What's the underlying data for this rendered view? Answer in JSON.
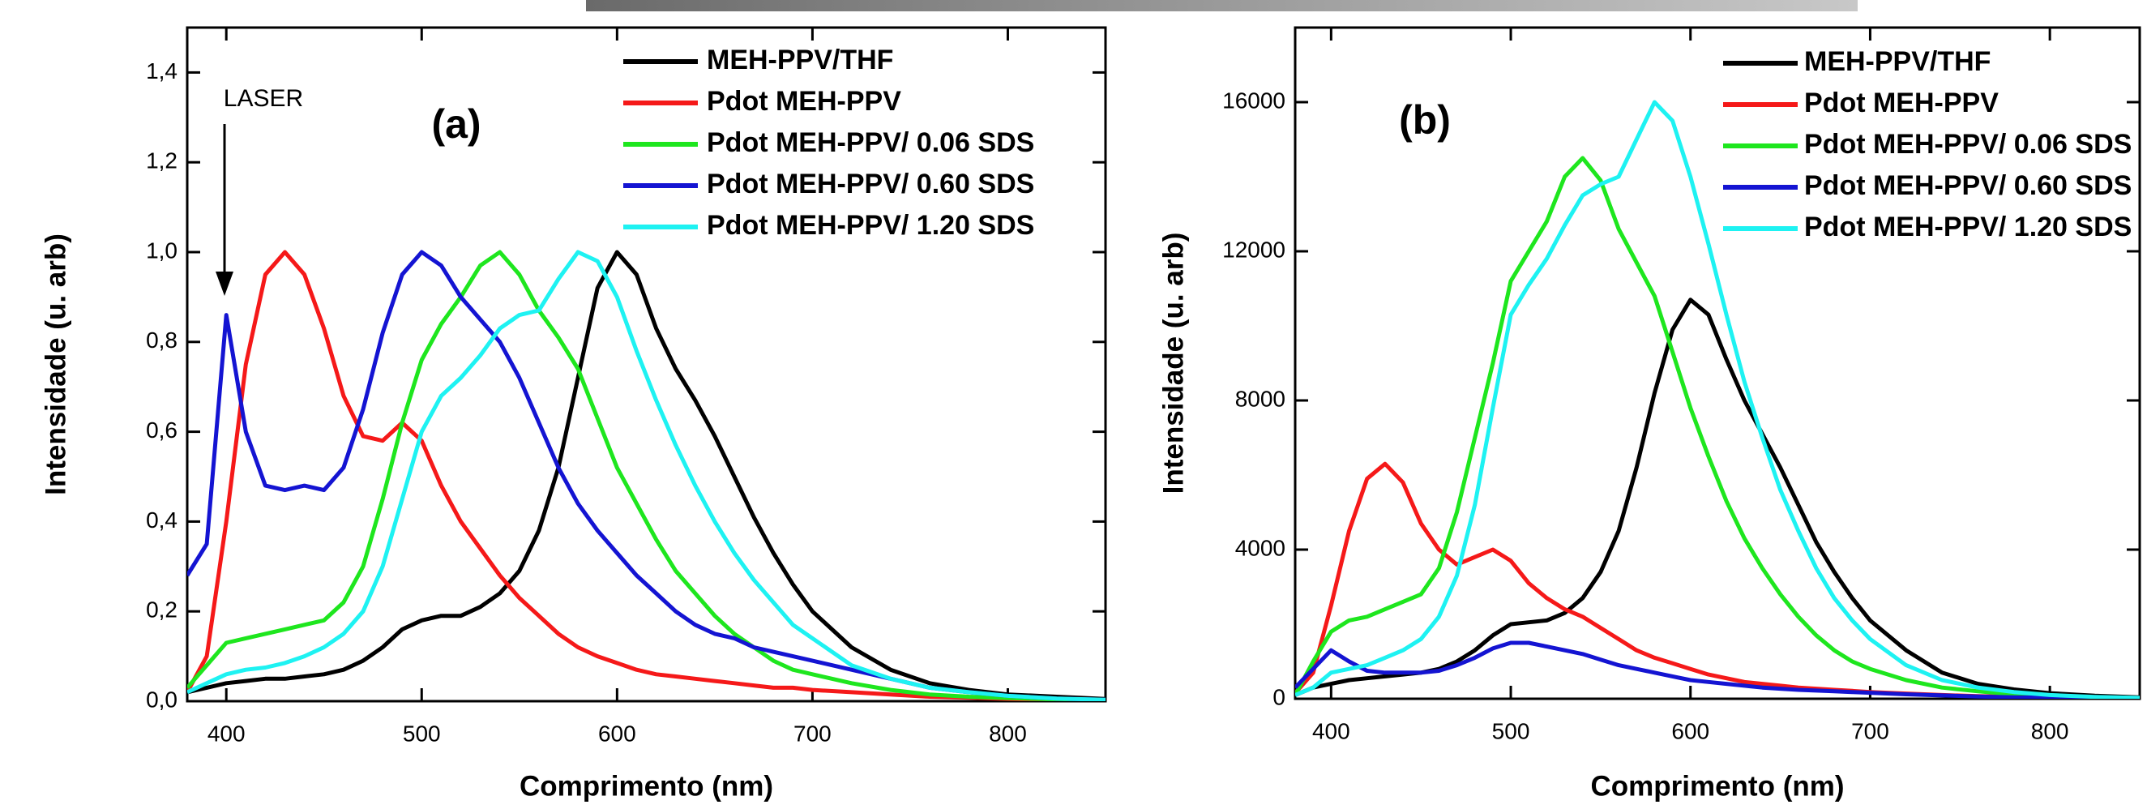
{
  "chart_data": [
    {
      "type": "line",
      "label": "(a)",
      "annotation": "LASER",
      "xlabel": "Comprimento (nm)",
      "ylabel": "Intensidade (u. arb)",
      "xlim": [
        380,
        850
      ],
      "xticks": [
        400,
        500,
        600,
        700,
        800
      ],
      "ylim": [
        0,
        1.5
      ],
      "yticks": [
        {
          "value": 0,
          "label": "0,0"
        },
        {
          "value": 0.2,
          "label": "0,2"
        },
        {
          "value": 0.4,
          "label": "0,4"
        },
        {
          "value": 0.6,
          "label": "0,6"
        },
        {
          "value": 0.8,
          "label": "0,8"
        },
        {
          "value": 1.0,
          "label": "1,0"
        },
        {
          "value": 1.2,
          "label": "1,2"
        },
        {
          "value": 1.4,
          "label": "1,4"
        }
      ],
      "x": [
        380,
        390,
        400,
        410,
        420,
        430,
        440,
        450,
        460,
        470,
        480,
        490,
        500,
        510,
        520,
        530,
        540,
        550,
        560,
        570,
        580,
        590,
        600,
        610,
        620,
        630,
        640,
        650,
        660,
        670,
        680,
        690,
        700,
        720,
        740,
        760,
        780,
        800,
        825,
        850
      ],
      "series": [
        {
          "name": "MEH-PPV/THF",
          "color": "#000000",
          "values": [
            0.02,
            0.03,
            0.04,
            0.045,
            0.05,
            0.05,
            0.055,
            0.06,
            0.07,
            0.09,
            0.12,
            0.16,
            0.18,
            0.19,
            0.19,
            0.21,
            0.24,
            0.29,
            0.38,
            0.52,
            0.72,
            0.92,
            1.0,
            0.95,
            0.83,
            0.74,
            0.67,
            0.59,
            0.5,
            0.41,
            0.33,
            0.26,
            0.2,
            0.12,
            0.07,
            0.04,
            0.025,
            0.015,
            0.01,
            0.005
          ]
        },
        {
          "name": "Pdot MEH-PPV",
          "color": "#f51919",
          "values": [
            0.02,
            0.1,
            0.4,
            0.75,
            0.95,
            1.0,
            0.95,
            0.83,
            0.68,
            0.59,
            0.58,
            0.62,
            0.58,
            0.48,
            0.4,
            0.34,
            0.28,
            0.23,
            0.19,
            0.15,
            0.12,
            0.1,
            0.085,
            0.07,
            0.06,
            0.055,
            0.05,
            0.045,
            0.04,
            0.035,
            0.03,
            0.03,
            0.025,
            0.02,
            0.015,
            0.01,
            0.008,
            0.005,
            0.003,
            0.002
          ]
        },
        {
          "name": "Pdot MEH-PPV/ 0.06 SDS",
          "color": "#1ee61e",
          "values": [
            0.03,
            0.08,
            0.13,
            0.14,
            0.15,
            0.16,
            0.17,
            0.18,
            0.22,
            0.3,
            0.45,
            0.62,
            0.76,
            0.84,
            0.9,
            0.97,
            1.0,
            0.95,
            0.87,
            0.81,
            0.74,
            0.63,
            0.52,
            0.44,
            0.36,
            0.29,
            0.24,
            0.19,
            0.15,
            0.12,
            0.09,
            0.07,
            0.06,
            0.04,
            0.025,
            0.015,
            0.01,
            0.007,
            0.004,
            0.002
          ]
        },
        {
          "name": "Pdot MEH-PPV/ 0.60 SDS",
          "color": "#1414d2",
          "values": [
            0.28,
            0.35,
            0.86,
            0.6,
            0.48,
            0.47,
            0.48,
            0.47,
            0.52,
            0.65,
            0.82,
            0.95,
            1.0,
            0.97,
            0.9,
            0.85,
            0.8,
            0.72,
            0.62,
            0.52,
            0.44,
            0.38,
            0.33,
            0.28,
            0.24,
            0.2,
            0.17,
            0.15,
            0.14,
            0.12,
            0.11,
            0.1,
            0.09,
            0.07,
            0.05,
            0.03,
            0.02,
            0.012,
            0.006,
            0.003
          ]
        },
        {
          "name": "Pdot MEH-PPV/ 1.20 SDS",
          "color": "#1ef2f2",
          "values": [
            0.02,
            0.04,
            0.06,
            0.07,
            0.075,
            0.085,
            0.1,
            0.12,
            0.15,
            0.2,
            0.3,
            0.45,
            0.6,
            0.68,
            0.72,
            0.77,
            0.83,
            0.86,
            0.87,
            0.94,
            1.0,
            0.98,
            0.9,
            0.78,
            0.67,
            0.57,
            0.48,
            0.4,
            0.33,
            0.27,
            0.22,
            0.17,
            0.14,
            0.08,
            0.05,
            0.03,
            0.02,
            0.012,
            0.006,
            0.003
          ]
        }
      ]
    },
    {
      "type": "line",
      "label": "(b)",
      "xlabel": "Comprimento (nm)",
      "ylabel": "Intensidade (u. arb)",
      "xlim": [
        380,
        850
      ],
      "xticks": [
        400,
        500,
        600,
        700,
        800
      ],
      "ylim": [
        0,
        18000
      ],
      "yticks": [
        0,
        4000,
        8000,
        12000,
        16000
      ],
      "x": [
        380,
        390,
        400,
        410,
        420,
        430,
        440,
        450,
        460,
        470,
        480,
        490,
        500,
        510,
        520,
        530,
        540,
        550,
        560,
        570,
        580,
        590,
        600,
        610,
        620,
        630,
        640,
        650,
        660,
        670,
        680,
        690,
        700,
        720,
        740,
        760,
        780,
        800,
        825,
        850
      ],
      "series": [
        {
          "name": "MEH-PPV/THF",
          "color": "#000000",
          "values": [
            100,
            300,
            400,
            500,
            550,
            600,
            650,
            700,
            800,
            1000,
            1300,
            1700,
            2000,
            2050,
            2100,
            2300,
            2700,
            3400,
            4500,
            6200,
            8200,
            9900,
            10700,
            10300,
            9100,
            8000,
            7100,
            6200,
            5200,
            4200,
            3400,
            2700,
            2100,
            1300,
            700,
            400,
            250,
            150,
            80,
            40
          ]
        },
        {
          "name": "Pdot MEH-PPV",
          "color": "#f51919",
          "values": [
            150,
            700,
            2500,
            4500,
            5900,
            6300,
            5800,
            4700,
            4000,
            3600,
            3800,
            4000,
            3700,
            3100,
            2700,
            2400,
            2200,
            1900,
            1600,
            1300,
            1100,
            950,
            800,
            650,
            550,
            450,
            400,
            350,
            300,
            270,
            240,
            210,
            180,
            140,
            100,
            70,
            50,
            30,
            20,
            10
          ]
        },
        {
          "name": "Pdot MEH-PPV/ 0.06 SDS",
          "color": "#1ee61e",
          "values": [
            100,
            1000,
            1800,
            2100,
            2200,
            2400,
            2600,
            2800,
            3500,
            5000,
            7000,
            9000,
            11200,
            12000,
            12800,
            14000,
            14500,
            13900,
            12600,
            11700,
            10800,
            9300,
            7800,
            6500,
            5300,
            4300,
            3500,
            2800,
            2200,
            1700,
            1300,
            1000,
            800,
            500,
            300,
            200,
            120,
            80,
            40,
            20
          ]
        },
        {
          "name": "Pdot MEH-PPV/ 0.60 SDS",
          "color": "#1414d2",
          "values": [
            300,
            800,
            1300,
            1000,
            750,
            700,
            700,
            700,
            750,
            900,
            1100,
            1350,
            1500,
            1500,
            1400,
            1300,
            1200,
            1050,
            900,
            800,
            700,
            600,
            500,
            450,
            400,
            350,
            300,
            270,
            240,
            220,
            200,
            180,
            160,
            120,
            90,
            60,
            40,
            30,
            20,
            10
          ]
        },
        {
          "name": "Pdot MEH-PPV/ 1.20 SDS",
          "color": "#1ef2f2",
          "values": [
            100,
            300,
            700,
            800,
            900,
            1100,
            1300,
            1600,
            2200,
            3300,
            5200,
            7800,
            10300,
            11100,
            11800,
            12700,
            13500,
            13800,
            14000,
            15000,
            16000,
            15500,
            14000,
            12200,
            10300,
            8500,
            7000,
            5600,
            4500,
            3500,
            2700,
            2100,
            1600,
            900,
            500,
            300,
            180,
            100,
            50,
            25
          ]
        }
      ]
    }
  ]
}
